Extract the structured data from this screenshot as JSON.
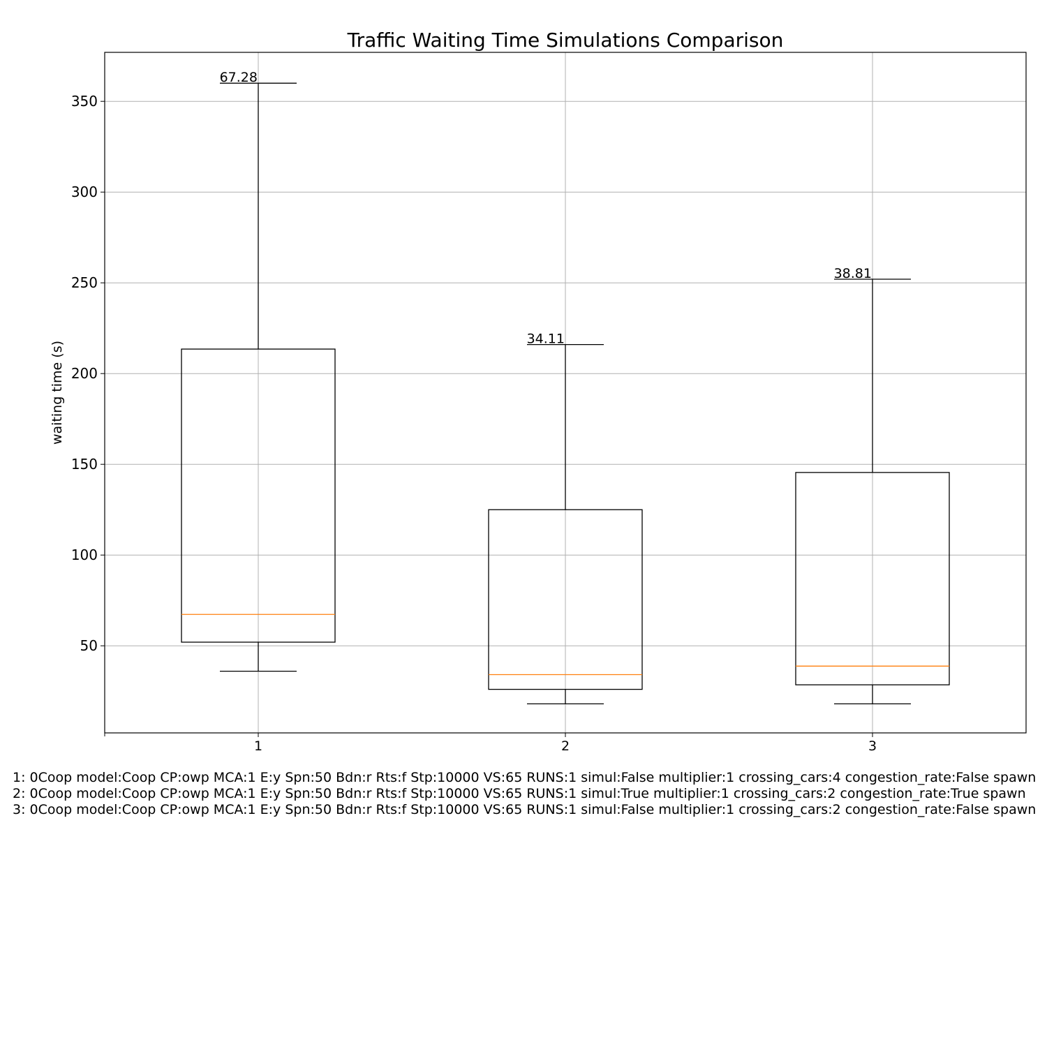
{
  "chart_data": {
    "type": "box",
    "title": "Traffic Waiting Time Simulations Comparison",
    "xlabel": "",
    "ylabel": "waiting time (s)",
    "ylim": [
      2,
      377
    ],
    "yticks": [
      50,
      100,
      150,
      200,
      250,
      300,
      350
    ],
    "grid": true,
    "categories": [
      "1",
      "2",
      "3"
    ],
    "boxes": [
      {
        "label": "1",
        "whisker_low": 36,
        "q1": 52,
        "median": 67.28,
        "q3": 213.5,
        "whisker_high": 360,
        "median_label": "67.28"
      },
      {
        "label": "2",
        "whisker_low": 18,
        "q1": 26,
        "median": 34.11,
        "q3": 125,
        "whisker_high": 216,
        "median_label": "34.11"
      },
      {
        "label": "3",
        "whisker_low": 18,
        "q1": 28.5,
        "median": 38.81,
        "q3": 145.5,
        "whisker_high": 252,
        "median_label": "38.81"
      }
    ],
    "colors": {
      "box": "#000000",
      "median": "#ff7f0e",
      "grid": "#b0b0b0"
    }
  },
  "notes": [
    "1: 0Coop model:Coop CP:owp MCA:1 E:y Spn:50 Bdn:r Rts:f Stp:10000 VS:65 RUNS:1 simul:False multiplier:1 crossing_cars:4 congestion_rate:False spawn",
    "2: 0Coop model:Coop CP:owp MCA:1 E:y Spn:50 Bdn:r Rts:f Stp:10000 VS:65 RUNS:1 simul:True multiplier:1 crossing_cars:2 congestion_rate:True spawn",
    "3: 0Coop model:Coop CP:owp MCA:1 E:y Spn:50 Bdn:r Rts:f Stp:10000 VS:65 RUNS:1 simul:False multiplier:1 crossing_cars:2 congestion_rate:False spawn"
  ]
}
